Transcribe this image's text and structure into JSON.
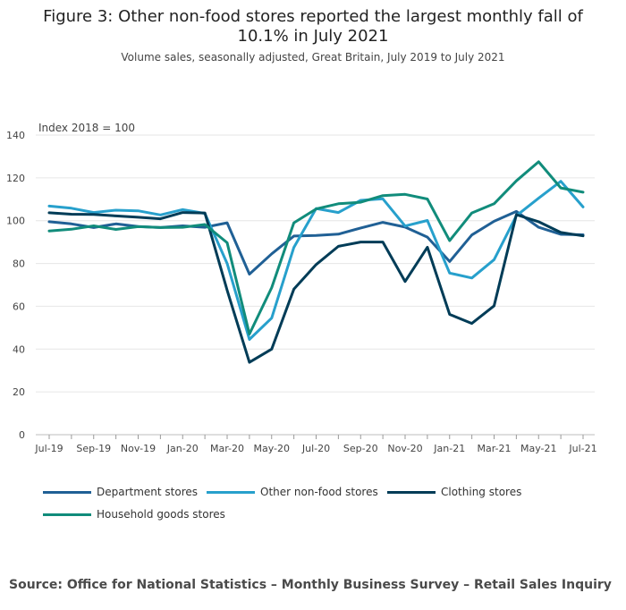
{
  "title": "Figure 3: Other non-food stores reported the largest monthly fall of 10.1% in July 2021",
  "subtitle": "Volume sales, seasonally adjusted, Great Britain, July 2019 to July 2021",
  "source": "Source: Office for National Statistics – Monthly Business Survey – Retail Sales Inquiry",
  "chart_data": {
    "type": "line",
    "ylabel": "Index 2018 = 100",
    "ylim": [
      0,
      140
    ],
    "yticks": [
      0,
      20,
      40,
      60,
      80,
      100,
      120,
      140
    ],
    "grid": true,
    "legend_position": "bottom",
    "x": [
      "Jul-19",
      "Aug-19",
      "Sep-19",
      "Oct-19",
      "Nov-19",
      "Dec-19",
      "Jan-20",
      "Feb-20",
      "Mar-20",
      "Apr-20",
      "May-20",
      "Jun-20",
      "Jul-20",
      "Aug-20",
      "Sep-20",
      "Oct-20",
      "Nov-20",
      "Dec-20",
      "Jan-21",
      "Feb-21",
      "Mar-21",
      "Apr-21",
      "May-21",
      "Jun-21",
      "Jul-21"
    ],
    "xtick_labels": [
      "Jul-19",
      "Sep-19",
      "Nov-19",
      "Jan-20",
      "Mar-20",
      "May-20",
      "Jul-20",
      "Sep-20",
      "Nov-20",
      "Jan-21",
      "Mar-21",
      "May-21",
      "Jul-21"
    ],
    "series": [
      {
        "name": "Department stores",
        "color": "#206095",
        "values": [
          99.5,
          98.5,
          96.8,
          98.5,
          97.3,
          96.8,
          97.6,
          96.9,
          99.0,
          75.0,
          84.5,
          92.8,
          93.1,
          93.7,
          96.6,
          99.2,
          97.0,
          92.3,
          80.9,
          93.3,
          99.7,
          104.3,
          96.9,
          93.6,
          93.4
        ]
      },
      {
        "name": "Other non-food stores",
        "color": "#27a0cc",
        "values": [
          106.8,
          105.8,
          103.8,
          104.9,
          104.6,
          102.7,
          105.2,
          103.4,
          80.0,
          44.5,
          54.5,
          87.5,
          105.7,
          103.8,
          109.5,
          110.2,
          97.5,
          100.1,
          75.5,
          73.2,
          81.8,
          102.3,
          110.5,
          118.4,
          106.4
        ]
      },
      {
        "name": "Clothing stores",
        "color": "#003c57",
        "values": [
          103.7,
          103.0,
          102.9,
          102.2,
          101.6,
          100.9,
          103.8,
          103.6,
          67.5,
          33.8,
          40.0,
          68.0,
          79.5,
          88.0,
          90.0,
          90.0,
          71.6,
          87.6,
          56.2,
          52.0,
          60.2,
          102.8,
          99.5,
          94.5,
          92.9
        ]
      },
      {
        "name": "Household goods stores",
        "color": "#118c7b",
        "values": [
          95.2,
          96.0,
          97.6,
          95.9,
          97.2,
          96.8,
          96.9,
          98.2,
          89.7,
          47.0,
          68.7,
          99.0,
          105.5,
          107.9,
          108.6,
          111.7,
          112.3,
          110.1,
          90.7,
          103.6,
          107.9,
          118.6,
          127.5,
          115.3,
          113.3
        ]
      }
    ]
  }
}
